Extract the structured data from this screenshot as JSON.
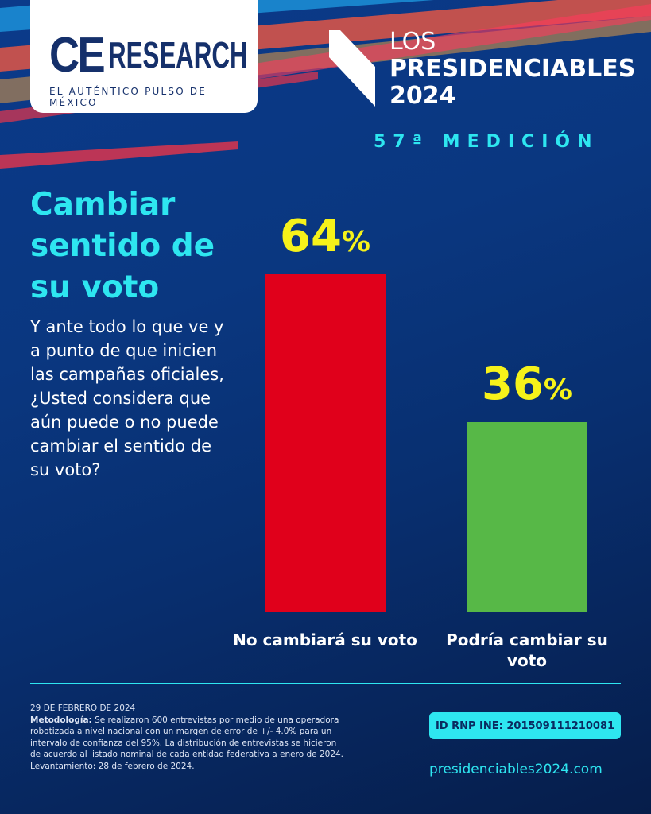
{
  "header": {
    "logo_text_ce": "CE",
    "logo_text_research": "RESEARCH",
    "logo_tagline": "EL AUTÉNTICO PULSO DE MÉXICO",
    "brand_line1": "LOS",
    "brand_line2": "PRESIDENCIABLES",
    "brand_line3": "2024",
    "measurement": "57ª MEDICIÓN"
  },
  "main": {
    "title": "Cambiar sentido de su voto",
    "question": "Y ante todo lo que ve y a punto de que inicien las campañas oficiales, ¿Usted considera que aún puede o no puede cambiar el sentido de su voto?"
  },
  "chart_data": {
    "type": "bar",
    "categories": [
      "No cambiará su voto",
      "Podría cambiar su voto"
    ],
    "values": [
      64,
      36
    ],
    "value_labels": [
      "64",
      "36"
    ],
    "unit": "%",
    "colors": [
      "#e0001b",
      "#57b847"
    ],
    "ylim": [
      0,
      64
    ],
    "grid": false
  },
  "footer": {
    "date": "29 DE FEBRERO DE 2024",
    "method_label": "Metodología:",
    "method_text": " Se realizaron 600 entrevistas por medio de una operadora robotizada a nivel nacional con un margen de error de +/- 4.0% para un intervalo de confianza del 95%. La distribución de entrevistas se hicieron de acuerdo al listado nominal de cada entidad federativa a enero de 2024. Levantamiento: 28 de febrero de 2024.",
    "rnp": "ID RNP INE:  201509111210081",
    "url": "presidenciables2024.com"
  },
  "colors": {
    "accent": "#2ee6f0",
    "value": "#f6f21a"
  }
}
